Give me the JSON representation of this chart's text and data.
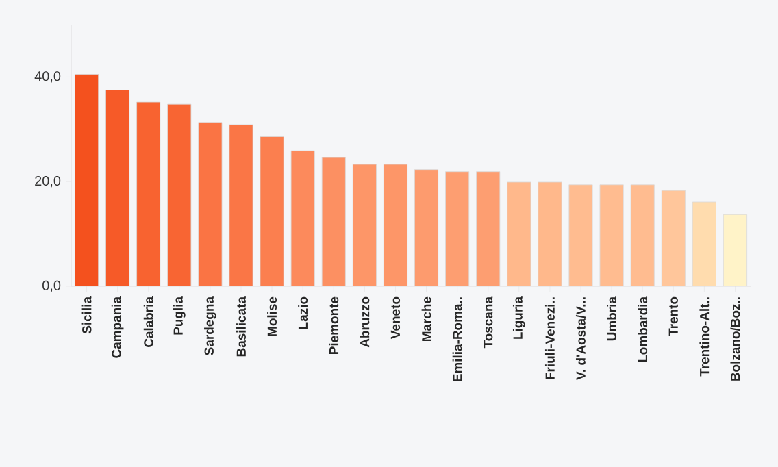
{
  "chart_data": {
    "type": "bar",
    "categories": [
      "Sicilia",
      "Campania",
      "Calabria",
      "Puglia",
      "Sardegna",
      "Basilicata",
      "Molise",
      "Lazio",
      "Piemonte",
      "Abruzzo",
      "Veneto",
      "Marche",
      "Emilia-Roma..",
      "Toscana",
      "Liguria",
      "Friuli-Venezi..",
      "V. d'Aosta/V...",
      "Umbria",
      "Lombardia",
      "Trento",
      "Trentino-Alt..",
      "Bolzano/Boz.."
    ],
    "values": [
      40.5,
      37.5,
      35.2,
      34.8,
      31.3,
      30.9,
      28.6,
      25.9,
      24.6,
      23.3,
      23.3,
      22.3,
      21.9,
      21.9,
      19.9,
      19.9,
      19.4,
      19.4,
      19.4,
      18.3,
      16.1,
      13.7
    ],
    "colors": [
      "#f4511e",
      "#f65a28",
      "#f86330",
      "#f86533",
      "#fa7444",
      "#fa7646",
      "#fb7f4f",
      "#fc8a5c",
      "#fc9062",
      "#fd9668",
      "#fd9668",
      "#fd9b6e",
      "#fd9e71",
      "#fd9e71",
      "#ffb88b",
      "#ffb88b",
      "#ffbc90",
      "#ffbc90",
      "#ffbc90",
      "#ffc69b",
      "#ffdcae",
      "#fff3c8"
    ],
    "ylim": [
      0,
      50
    ],
    "yticks": [
      {
        "value": 0,
        "label": "0,0"
      },
      {
        "value": 20,
        "label": "20,0"
      },
      {
        "value": 40,
        "label": "40,0"
      }
    ],
    "grid": false
  }
}
